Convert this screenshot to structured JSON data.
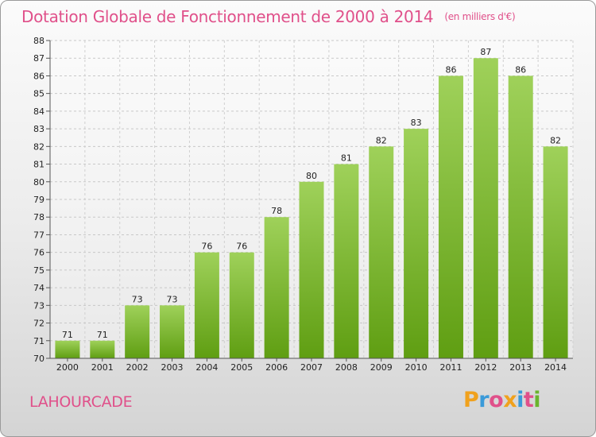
{
  "header": {
    "title": "Dotation Globale de Fonctionnement de 2000 à 2014",
    "unit": "(en milliers d'€)"
  },
  "footer": {
    "commune": "LAHOURCADE",
    "logo": "Proxiti"
  },
  "colors": {
    "title": "#e0508a",
    "bar_top": "#9fd15a",
    "bar_bottom": "#5f9e12",
    "logo_letters": [
      "#f0a11d",
      "#3a9ad9",
      "#e0508a",
      "#f0a11d",
      "#3a9ad9",
      "#e0508a",
      "#6ab42d"
    ]
  },
  "chart_data": {
    "type": "bar",
    "categories": [
      "2000",
      "2001",
      "2002",
      "2003",
      "2004",
      "2005",
      "2006",
      "2007",
      "2008",
      "2009",
      "2010",
      "2011",
      "2012",
      "2013",
      "2014"
    ],
    "values": [
      71,
      71,
      73,
      73,
      76,
      76,
      78,
      80,
      81,
      82,
      83,
      86,
      87,
      86,
      82
    ],
    "data_labels": [
      "71",
      "71",
      "73",
      "73",
      "76",
      "76",
      "78",
      "80",
      "81",
      "82",
      "83",
      "86",
      "87",
      "86",
      "82"
    ],
    "ylim": [
      70,
      88
    ],
    "yticks": [
      "70",
      "71",
      "72",
      "73",
      "74",
      "75",
      "76",
      "77",
      "78",
      "79",
      "80",
      "81",
      "82",
      "83",
      "84",
      "85",
      "86",
      "87",
      "88"
    ],
    "title": "Dotation Globale de Fonctionnement de 2000 à 2014",
    "xlabel": "",
    "ylabel": "",
    "grid": true
  }
}
